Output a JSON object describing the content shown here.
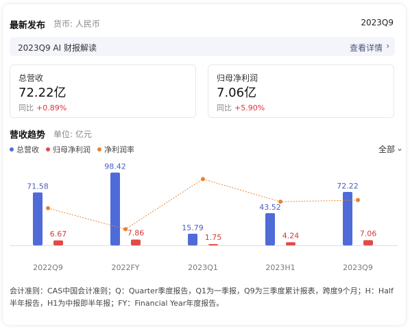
{
  "header": {
    "title": "最新发布",
    "currency": "货币: 人民币",
    "period": "2023Q9"
  },
  "ai": {
    "title": "2023Q9 AI 财报解读",
    "link": "查看详情"
  },
  "metrics": {
    "revenue": {
      "label": "总营收",
      "value": "72.22亿",
      "yoy_label": "同比",
      "yoy": "+0.89%"
    },
    "net_profit": {
      "label": "归母净利润",
      "value": "7.06亿",
      "yoy_label": "同比",
      "yoy": "+5.90%"
    }
  },
  "trend": {
    "title": "营收趋势",
    "unit": "单位: 亿元",
    "filter": "全部"
  },
  "colors": {
    "revenue": "#4f6bd8",
    "profit": "#e24a4a",
    "margin": "#e9812f",
    "axis": "#dddddd"
  },
  "chart_data": {
    "type": "bar",
    "categories": [
      "2022Q9",
      "2022FY",
      "2023Q1",
      "2023H1",
      "2023Q9"
    ],
    "series": [
      {
        "name": "总营收",
        "type": "bar",
        "values": [
          71.58,
          98.42,
          15.79,
          43.52,
          72.22
        ]
      },
      {
        "name": "归母净利润",
        "type": "bar",
        "values": [
          6.67,
          7.86,
          1.75,
          4.24,
          7.06
        ]
      },
      {
        "name": "净利润率",
        "type": "line",
        "values": [
          9.3,
          8.0,
          11.1,
          9.7,
          9.8
        ]
      }
    ],
    "grid": false,
    "legend": "top-left"
  },
  "footnote": "会计准则：CAS中国会计准则；Q：Quarter季度报告，Q1为一季报，Q9为三季度累计报表，跨度9个月；H：Half半年报告，H1为中报即半年报；FY：Financial Year年度报告。"
}
